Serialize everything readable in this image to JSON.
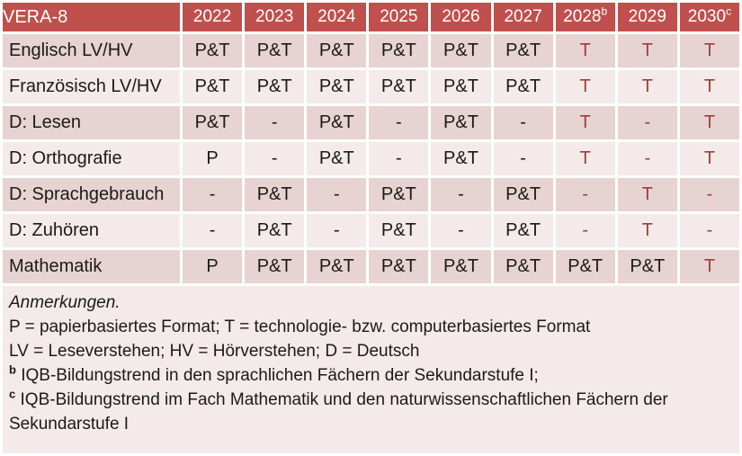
{
  "table": {
    "title": "VERA-8",
    "columns": [
      {
        "year": "2022",
        "sup": ""
      },
      {
        "year": "2023",
        "sup": ""
      },
      {
        "year": "2024",
        "sup": ""
      },
      {
        "year": "2025",
        "sup": ""
      },
      {
        "year": "2026",
        "sup": ""
      },
      {
        "year": "2027",
        "sup": ""
      },
      {
        "year": "2028",
        "sup": "b"
      },
      {
        "year": "2029",
        "sup": ""
      },
      {
        "year": "2030",
        "sup": "c"
      }
    ],
    "rows": [
      {
        "label": "Englisch LV/HV",
        "cells": [
          "P&T",
          "P&T",
          "P&T",
          "P&T",
          "P&T",
          "P&T",
          "T",
          "T",
          "T"
        ],
        "red_cells": [
          6,
          7,
          8
        ]
      },
      {
        "label": "Französisch LV/HV",
        "cells": [
          "P&T",
          "P&T",
          "P&T",
          "P&T",
          "P&T",
          "P&T",
          "T",
          "T",
          "T"
        ],
        "red_cells": [
          6,
          7,
          8
        ]
      },
      {
        "label": "D: Lesen",
        "cells": [
          "P&T",
          "-",
          "P&T",
          "-",
          "P&T",
          "-",
          "T",
          "-",
          "T"
        ],
        "red_cells": [
          6,
          7,
          8
        ]
      },
      {
        "label": "D: Orthografie",
        "cells": [
          "P",
          "-",
          "P&T",
          "-",
          "P&T",
          "-",
          "T",
          "-",
          "T"
        ],
        "red_cells": [
          6,
          7,
          8
        ]
      },
      {
        "label": "D: Sprachgebrauch",
        "cells": [
          "-",
          "P&T",
          "-",
          "P&T",
          "-",
          "P&T",
          "-",
          "T",
          "-"
        ],
        "red_cells": [
          6,
          7,
          8
        ]
      },
      {
        "label": "D: Zuhören",
        "cells": [
          "-",
          "P&T",
          "-",
          "P&T",
          "-",
          "P&T",
          "-",
          "T",
          "-"
        ],
        "red_cells": [
          6,
          7,
          8
        ]
      },
      {
        "label": "Mathematik",
        "cells": [
          "P",
          "P&T",
          "P&T",
          "P&T",
          "P&T",
          "P&T",
          "P&T",
          "P&T",
          "T"
        ],
        "red_cells": [
          8
        ]
      }
    ]
  },
  "notes": {
    "heading": "Anmerkungen.",
    "lines": [
      {
        "sup": "",
        "text": "P = papierbasiertes Format; T = technologie- bzw. computerbasiertes Format"
      },
      {
        "sup": "",
        "text": "LV = Leseverstehen; HV = Hörverstehen; D = Deutsch"
      },
      {
        "sup": "b",
        "text": "IQB-Bildungstrend in den sprachlichen Fächern der Sekundarstufe I;"
      },
      {
        "sup": "c",
        "text": "IQB-Bildungstrend im Fach Mathematik und den naturwissenschaftlichen Fächern der Sekundarstufe I"
      }
    ]
  },
  "colors": {
    "header_bg": "#C0504D",
    "header_text": "#FFFFFF",
    "row_band_dark": "#E7D3D1",
    "row_band_light": "#F3EAE9",
    "notes_bg": "#F3EAE9",
    "accent_text": "#A23C39",
    "body_text": "#1A1A1A",
    "separator": "#FFFFFF"
  }
}
